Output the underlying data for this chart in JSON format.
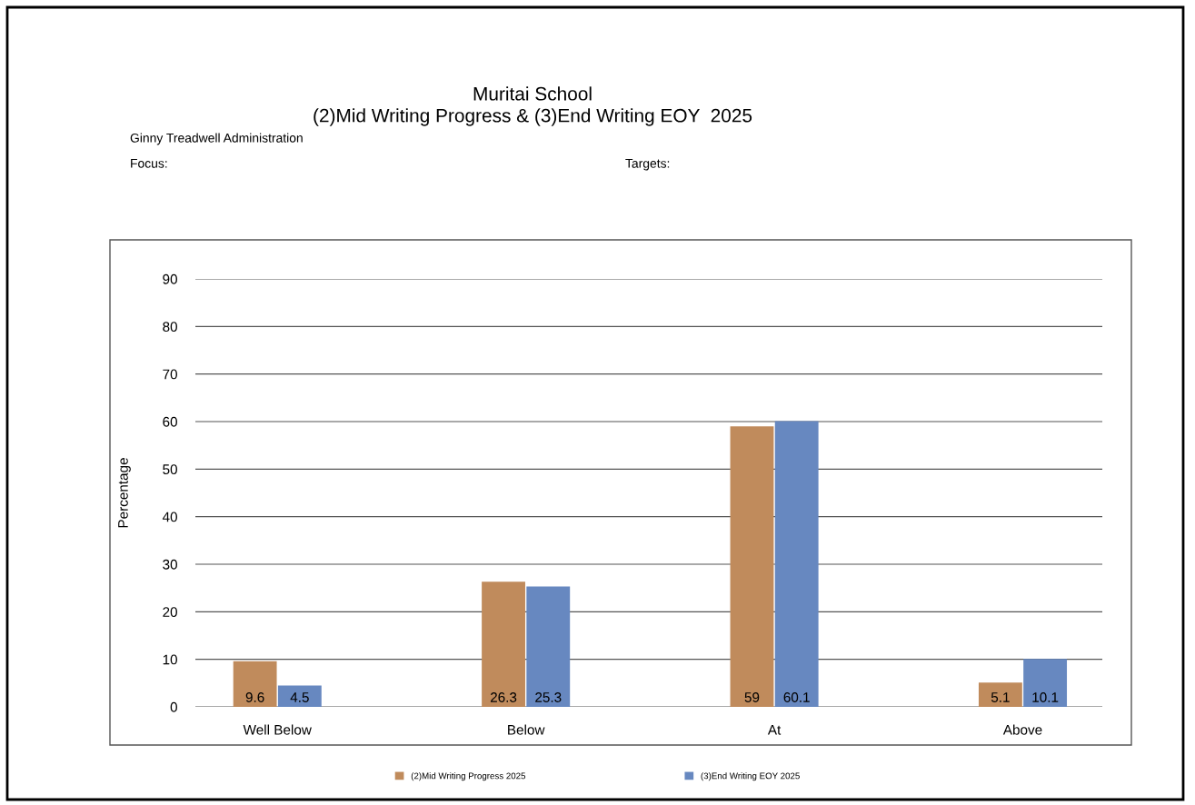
{
  "chart_data": {
    "type": "bar",
    "title": "Muritai School\n(2)Mid Writing Progress & (3)End Writing EOY  2025",
    "annotations": [
      "Ginny Treadwell Administration",
      "Focus:",
      "Targets:"
    ],
    "ylabel": "Percentage",
    "categories": [
      "Well Below",
      "Below",
      "At",
      "Above"
    ],
    "series": [
      {
        "name": "(2)Mid Writing Progress 2025",
        "color": "#c08b5c",
        "values": [
          9.6,
          26.3,
          59,
          5.1
        ]
      },
      {
        "name": "(3)End Writing EOY 2025",
        "color": "#6788c0",
        "values": [
          4.5,
          25.3,
          60.1,
          10.1
        ]
      }
    ],
    "ylim": [
      0,
      90
    ],
    "yticks": [
      0,
      10,
      20,
      30,
      40,
      50,
      60,
      70,
      80,
      90
    ],
    "grid": "y",
    "legend": "bottom",
    "data_labels": true
  }
}
